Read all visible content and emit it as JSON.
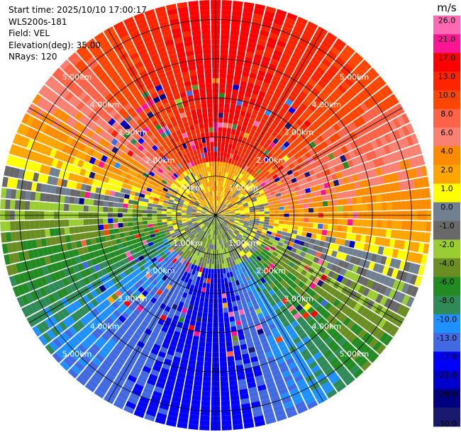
{
  "header": {
    "start_time": "Start time: 2025/10/10 17:00:17",
    "site": "WLS200s-181",
    "field": "Field: VEL",
    "elevation": "Elevation(deg): 35.00",
    "nrays": "NRays: 120"
  },
  "chart_data": {
    "type": "polar-ppi",
    "field": "VEL",
    "units_label": "m/s",
    "range_rings_km": [
      1,
      2,
      3,
      4,
      5
    ],
    "range_ring_labels": [
      "1.00km",
      "2.00km",
      "3.00km",
      "4.00km",
      "5.00km"
    ],
    "max_range_km": 5.5,
    "n_rays": 120,
    "spoke_count": 12,
    "velocity_field_by_azimuth": [
      {
        "azimuth_deg": 0,
        "velocity": 20
      },
      {
        "azimuth_deg": 45,
        "velocity": 12
      },
      {
        "azimuth_deg": 90,
        "velocity": 4
      },
      {
        "azimuth_deg": 135,
        "velocity": -5
      },
      {
        "azimuth_deg": 180,
        "velocity": -16
      },
      {
        "azimuth_deg": 225,
        "velocity": -10
      },
      {
        "azimuth_deg": 270,
        "velocity": -2
      },
      {
        "azimuth_deg": 315,
        "velocity": 9
      }
    ],
    "colorbar": {
      "ticks": [
        "26.0",
        "21.0",
        "17.0",
        "13.0",
        "10.0",
        "8.0",
        "6.0",
        "4.0",
        "2.0",
        "1.0",
        "0.0",
        "-1.0",
        "-2.0",
        "-4.0",
        "-6.0",
        "-8.0",
        "-10.0",
        "-13.0",
        "-17.0",
        "-21.0",
        "-26.0",
        "-30.0"
      ],
      "bands": [
        {
          "min": 26,
          "max": 30,
          "color": "#ff69b4"
        },
        {
          "min": 21,
          "max": 26,
          "color": "#ff1493"
        },
        {
          "min": 17,
          "max": 21,
          "color": "#ff0000"
        },
        {
          "min": 13,
          "max": 17,
          "color": "#ff2400"
        },
        {
          "min": 10,
          "max": 13,
          "color": "#ff4500"
        },
        {
          "min": 8,
          "max": 10,
          "color": "#ff6347"
        },
        {
          "min": 6,
          "max": 8,
          "color": "#fa8072"
        },
        {
          "min": 4,
          "max": 6,
          "color": "#ff8c00"
        },
        {
          "min": 2,
          "max": 4,
          "color": "#ffa500"
        },
        {
          "min": 1,
          "max": 2,
          "color": "#ffff00"
        },
        {
          "min": 0,
          "max": 1,
          "color": "#708090"
        },
        {
          "min": -1,
          "max": 0,
          "color": "#696969"
        },
        {
          "min": -2,
          "max": -1,
          "color": "#9acd32"
        },
        {
          "min": -4,
          "max": -2,
          "color": "#6b8e23"
        },
        {
          "min": -6,
          "max": -4,
          "color": "#228b22"
        },
        {
          "min": -8,
          "max": -6,
          "color": "#2e8b57"
        },
        {
          "min": -10,
          "max": -8,
          "color": "#1e90ff"
        },
        {
          "min": -13,
          "max": -10,
          "color": "#4169e1"
        },
        {
          "min": -17,
          "max": -13,
          "color": "#0000ff"
        },
        {
          "min": -21,
          "max": -17,
          "color": "#0000cd"
        },
        {
          "min": -26,
          "max": -21,
          "color": "#000080"
        },
        {
          "min": -30,
          "max": -26,
          "color": "#191970"
        }
      ]
    }
  }
}
